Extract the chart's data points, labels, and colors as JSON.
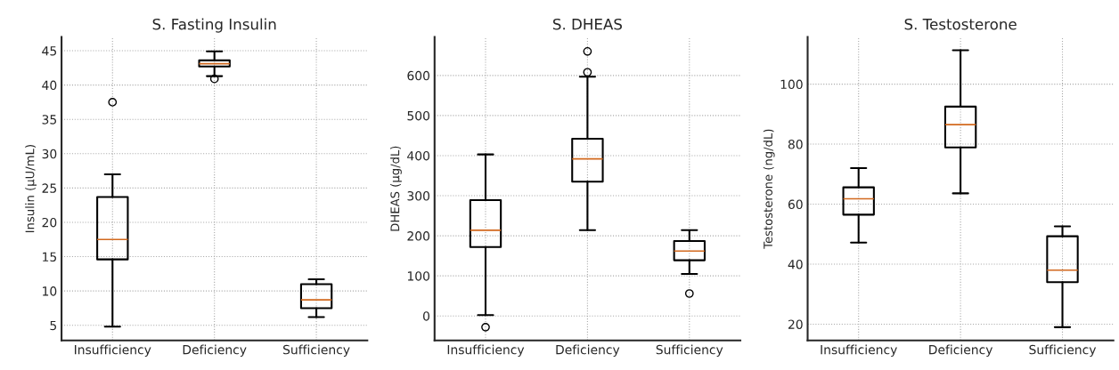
{
  "chart_data": [
    {
      "type": "box",
      "title": "S. Fasting Insulin",
      "ylabel": "Insulin (µU/mL)",
      "categories": [
        "Insufficiency",
        "Deficiency",
        "Sufficiency"
      ],
      "ylim": [
        2.8,
        47
      ],
      "yticks": [
        5,
        10,
        15,
        20,
        25,
        30,
        35,
        40,
        45
      ],
      "grid": true,
      "color": "#000000",
      "boxes": [
        {
          "low": 4.8,
          "q1": 14.6,
          "median": 17.5,
          "q3": 23.7,
          "high": 27,
          "outliers": [
            37.5
          ]
        },
        {
          "low": 41.3,
          "q1": 42.7,
          "median": 43.1,
          "q3": 43.6,
          "high": 44.9,
          "outliers": [
            40.9
          ]
        },
        {
          "low": 6.2,
          "q1": 7.5,
          "median": 8.7,
          "q3": 11.0,
          "high": 11.7
        }
      ]
    },
    {
      "type": "box",
      "title": "S. DHEAS",
      "ylabel": "DHEAS (µg/dL)",
      "categories": [
        "Insufficiency",
        "Deficiency",
        "Sufficiency"
      ],
      "ylim": [
        -61,
        696
      ],
      "yticks": [
        0,
        100,
        200,
        300,
        400,
        500,
        600
      ],
      "grid": true,
      "color": "#000000",
      "boxes": [
        {
          "low": 2,
          "q1": 172,
          "median": 214,
          "q3": 289,
          "high": 403,
          "outliers": [
            -28
          ]
        },
        {
          "low": 214,
          "q1": 335,
          "median": 392,
          "q3": 442,
          "high": 597,
          "outliers": [
            608,
            660
          ]
        },
        {
          "low": 105,
          "q1": 139,
          "median": 162,
          "q3": 187,
          "high": 214,
          "outliers": [
            56
          ]
        }
      ]
    },
    {
      "type": "box",
      "title": "S. Testosterone",
      "ylabel": "Testosterone (ng/dL)",
      "categories": [
        "Insufficiency",
        "Deficiency",
        "Sufficiency"
      ],
      "ylim": [
        14.6,
        115.7
      ],
      "yticks": [
        20,
        40,
        60,
        80,
        100
      ],
      "grid": true,
      "color": "#000000",
      "boxes": [
        {
          "low": 47.2,
          "q1": 56.5,
          "median": 61.8,
          "q3": 65.6,
          "high": 72
        },
        {
          "low": 63.6,
          "q1": 78.9,
          "median": 86.5,
          "q3": 92.5,
          "high": 111.3
        },
        {
          "low": 19,
          "q1": 34,
          "median": 38,
          "q3": 49.3,
          "high": 52.6
        }
      ]
    }
  ]
}
